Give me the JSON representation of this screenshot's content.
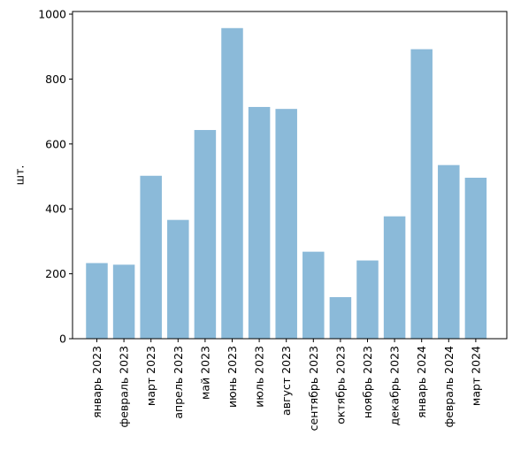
{
  "chart_data": {
    "type": "bar",
    "title": "",
    "xlabel": "",
    "ylabel": "шт.",
    "categories": [
      "январь 2023",
      "февраль 2023",
      "март 2023",
      "апрель 2023",
      "май 2023",
      "июнь 2023",
      "июль 2023",
      "август 2023",
      "сентябрь 2023",
      "октябрь 2023",
      "ноябрь 2023",
      "декабрь 2023",
      "январь 2024",
      "февраль 2024",
      "март 2024"
    ],
    "values": [
      233,
      228,
      502,
      366,
      643,
      957,
      714,
      708,
      268,
      128,
      241,
      377,
      892,
      535,
      496
    ],
    "ylim": [
      0,
      1000
    ],
    "yticks": [
      0,
      200,
      400,
      600,
      800,
      1000
    ],
    "grid": false,
    "bar_color": "#8bbad9",
    "legend": "none"
  }
}
